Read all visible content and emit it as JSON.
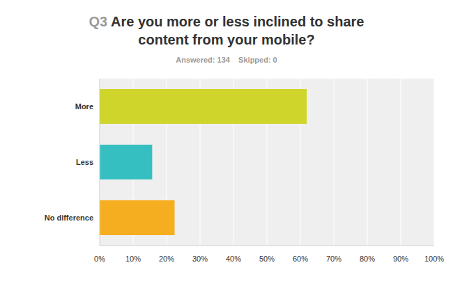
{
  "chart_data": {
    "type": "bar",
    "orientation": "horizontal",
    "title": "Q3 Are you more or less inclined to share content from your mobile?",
    "subtitle": "Answered: 134    Skipped: 0",
    "categories": [
      "More",
      "Less",
      "No difference"
    ],
    "values": [
      61.9,
      15.7,
      22.4
    ],
    "colors": [
      "#cfd52a",
      "#36bfc0",
      "#f6ae21"
    ],
    "xlim": [
      0,
      100
    ],
    "xticks": [
      {
        "value": 0,
        "label": "0%"
      },
      {
        "value": 10,
        "label": "10%"
      },
      {
        "value": 20,
        "label": "20%"
      },
      {
        "value": 30,
        "label": "30%"
      },
      {
        "value": 40,
        "label": "40%"
      },
      {
        "value": 50,
        "label": "50%"
      },
      {
        "value": 60,
        "label": "60%"
      },
      {
        "value": 70,
        "label": "70%"
      },
      {
        "value": 80,
        "label": "80%"
      },
      {
        "value": 90,
        "label": "90%"
      },
      {
        "value": 100,
        "label": "100%"
      }
    ],
    "grid": true
  }
}
